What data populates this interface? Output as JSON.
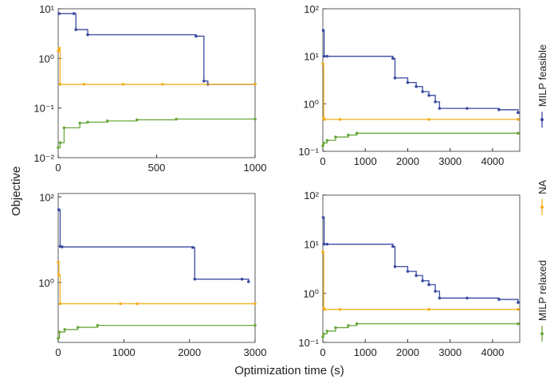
{
  "chart_data": [
    {
      "type": "line",
      "log_y": true,
      "xlabel": "Optimization time (s)",
      "ylabel": "Objective",
      "xlim": [
        0,
        1000
      ],
      "ylim": [
        0.01,
        10
      ],
      "xticks": [
        0,
        500,
        1000
      ],
      "yticks": [
        {
          "value": 0.01,
          "label": "10⁻²"
        },
        {
          "value": 0.1,
          "label": "10⁻¹"
        },
        {
          "value": 1,
          "label": "10⁰"
        },
        {
          "value": 10,
          "label": "10¹"
        }
      ],
      "series": [
        {
          "name": "MILP feasible",
          "color": "#3849a2",
          "x": [
            5,
            80,
            90,
            150,
            700,
            740,
            760,
            1000
          ],
          "values": [
            8,
            8,
            3.8,
            3,
            2.8,
            0.35,
            0.3,
            0.3
          ]
        },
        {
          "name": "NA",
          "color": "#f2b01e",
          "x": [
            0,
            5,
            10,
            130,
            330,
            530,
            1000
          ],
          "values": [
            1.4,
            1.6,
            0.3,
            0.3,
            0.3,
            0.3,
            0.3
          ]
        },
        {
          "name": "MILP relaxed",
          "color": "#6aa83c",
          "x": [
            0,
            10,
            30,
            110,
            150,
            250,
            400,
            600,
            1000
          ],
          "values": [
            0.016,
            0.02,
            0.04,
            0.05,
            0.052,
            0.055,
            0.058,
            0.06,
            0.06
          ]
        }
      ]
    },
    {
      "type": "line",
      "log_y": true,
      "xlim": [
        0,
        4640
      ],
      "ylim": [
        0.1,
        100
      ],
      "xticks": [
        0,
        1000,
        2000,
        3000,
        4000
      ],
      "yticks": [
        {
          "value": 0.1,
          "label": "10⁻¹"
        },
        {
          "value": 1,
          "label": "10⁰"
        },
        {
          "value": 10,
          "label": "10¹"
        },
        {
          "value": 100,
          "label": "10²"
        }
      ],
      "series": [
        {
          "color": "#3849a2",
          "x": [
            10,
            30,
            100,
            1650,
            1700,
            2000,
            2200,
            2350,
            2500,
            2650,
            2750,
            3400,
            4150,
            4600
          ],
          "values": [
            35,
            10,
            10,
            9,
            3.5,
            2.8,
            2.3,
            1.8,
            1.5,
            1.1,
            0.8,
            0.8,
            0.75,
            0.65
          ]
        },
        {
          "color": "#f2b01e",
          "x": [
            0,
            20,
            40,
            400,
            2500,
            4600
          ],
          "values": [
            7,
            0.5,
            0.47,
            0.47,
            0.47,
            0.47
          ]
        },
        {
          "color": "#6aa83c",
          "x": [
            0,
            20,
            100,
            300,
            600,
            800,
            4600
          ],
          "values": [
            0.13,
            0.15,
            0.17,
            0.2,
            0.22,
            0.24,
            0.24
          ]
        }
      ]
    },
    {
      "type": "line",
      "log_y": true,
      "xlim": [
        0,
        3000
      ],
      "ylim": [
        0.04,
        120
      ],
      "xticks": [
        0,
        1000,
        2000,
        3000
      ],
      "yticks": [
        {
          "value": 1,
          "label": "10⁰"
        },
        {
          "value": 100,
          "label": "10²"
        }
      ],
      "series": [
        {
          "color": "#3849a2",
          "x": [
            10,
            30,
            60,
            2050,
            2080,
            2800,
            2900
          ],
          "values": [
            50,
            7,
            6.8,
            6.6,
            1.2,
            1.2,
            1.05
          ]
        },
        {
          "color": "#f2b01e",
          "x": [
            0,
            10,
            30,
            950,
            1200,
            3000
          ],
          "values": [
            3,
            1.5,
            0.32,
            0.32,
            0.32,
            0.32
          ]
        },
        {
          "color": "#6aa83c",
          "x": [
            0,
            20,
            100,
            300,
            600,
            3000
          ],
          "values": [
            0.05,
            0.07,
            0.08,
            0.09,
            0.1,
            0.1
          ]
        }
      ]
    },
    {
      "type": "line",
      "log_y": true,
      "xlim": [
        0,
        4640
      ],
      "ylim": [
        0.1,
        100
      ],
      "xticks": [
        0,
        1000,
        2000,
        3000,
        4000
      ],
      "yticks": [
        {
          "value": 0.1,
          "label": "10⁻¹"
        },
        {
          "value": 1,
          "label": "10⁰"
        },
        {
          "value": 10,
          "label": "10¹"
        },
        {
          "value": 100,
          "label": "10²"
        }
      ],
      "series": [
        {
          "color": "#3849a2",
          "x": [
            10,
            30,
            100,
            1650,
            1700,
            2000,
            2200,
            2350,
            2500,
            2650,
            2750,
            3400,
            4150,
            4600
          ],
          "values": [
            35,
            10,
            10,
            9,
            3.5,
            2.8,
            2.3,
            1.8,
            1.5,
            1.1,
            0.8,
            0.8,
            0.75,
            0.65
          ]
        },
        {
          "color": "#f2b01e",
          "x": [
            0,
            20,
            40,
            400,
            2500,
            4600
          ],
          "values": [
            7,
            0.5,
            0.47,
            0.47,
            0.47,
            0.47
          ]
        },
        {
          "color": "#6aa83c",
          "x": [
            0,
            20,
            100,
            300,
            600,
            800,
            4600
          ],
          "values": [
            0.13,
            0.15,
            0.17,
            0.2,
            0.22,
            0.24,
            0.24
          ]
        }
      ]
    }
  ]
}
